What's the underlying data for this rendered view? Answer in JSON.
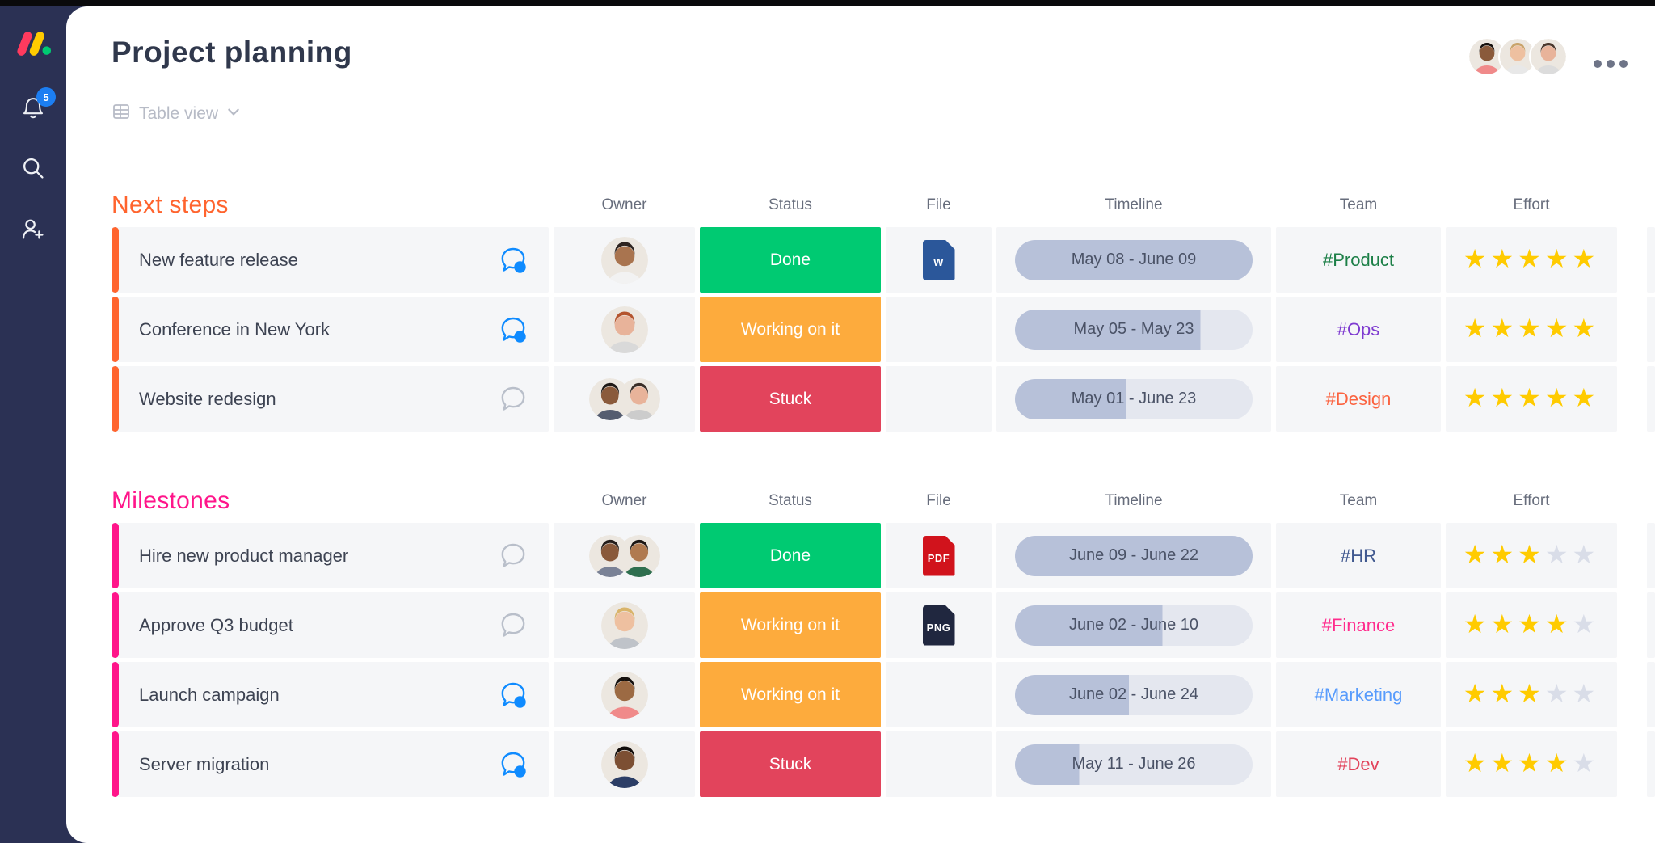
{
  "header": {
    "title": "Project planning",
    "view_label": "Table view"
  },
  "sidebar": {
    "notification_badge": "5",
    "icons": [
      "monday-logo",
      "notifications-bell",
      "search",
      "invite-user"
    ]
  },
  "topbar": {
    "avatars": [
      {
        "skin": "#8a5a3b",
        "hair": "#17110e",
        "shirt": "#f08a8a"
      },
      {
        "skin": "#eec0a0",
        "hair": "#c9a36a",
        "shirt": "#e8e8e8"
      },
      {
        "skin": "#e8b39a",
        "hair": "#4a372c",
        "shirt": "#dcdcdc"
      }
    ]
  },
  "columns": [
    "Owner",
    "Status",
    "File",
    "Timeline",
    "Team",
    "Effort"
  ],
  "palette": {
    "status_done": "#00ca72",
    "status_working": "#fdab3d",
    "status_stuck": "#e2445c",
    "star_filled": "#ffcb00",
    "star_empty": "#d9dde8",
    "timeline_fill": "#b7c1d9",
    "timeline_rest": "#e4e7ef",
    "update_blue": "#0f8bff",
    "bubble_gray": "#b9bfca"
  },
  "groups": [
    {
      "title": "Next steps",
      "color": "#ff642e",
      "rows": [
        {
          "name": "New feature release",
          "has_update": true,
          "owners": [
            {
              "skin": "#a9744f",
              "hair": "#2e2420",
              "shirt": "#f2f2f2"
            }
          ],
          "status": {
            "label": "Done",
            "color": "#00ca72"
          },
          "file": {
            "label": "W",
            "color": "#2b579a"
          },
          "timeline": {
            "label": "May 08 - June 09",
            "fill": 100
          },
          "team": {
            "label": "#Product",
            "color": "#1c7f47"
          },
          "effort": 5
        },
        {
          "name": "Conference in New York",
          "has_update": true,
          "owners": [
            {
              "skin": "#e8b39a",
              "hair": "#b4542e",
              "shirt": "#d9d9d9"
            }
          ],
          "status": {
            "label": "Working on it",
            "color": "#fdab3d"
          },
          "file": null,
          "timeline": {
            "label": "May 05 - May 23",
            "fill": 78
          },
          "team": {
            "label": "#Ops",
            "color": "#7e3bd0"
          },
          "effort": 5
        },
        {
          "name": "Website redesign",
          "has_update": false,
          "owners": [
            {
              "skin": "#8a5a3b",
              "hair": "#1f1a17",
              "shirt": "#555d70"
            },
            {
              "skin": "#e8b39a",
              "hair": "#3a2e28",
              "shirt": "#cccccc"
            }
          ],
          "status": {
            "label": "Stuck",
            "color": "#e2445c"
          },
          "file": null,
          "timeline": {
            "label": "May 01 - June 23",
            "fill": 47
          },
          "team": {
            "label": "#Design",
            "color": "#fb6340"
          },
          "effort": 5
        }
      ]
    },
    {
      "title": "Milestones",
      "color": "#ff158a",
      "rows": [
        {
          "name": "Hire new product manager",
          "has_update": false,
          "owners": [
            {
              "skin": "#8a5a3b",
              "hair": "#241d1a",
              "shirt": "#7a8296"
            },
            {
              "skin": "#b07a50",
              "hair": "#1c1613",
              "shirt": "#2f6f4f"
            }
          ],
          "status": {
            "label": "Done",
            "color": "#00ca72"
          },
          "file": {
            "label": "PDF",
            "color": "#d1131c"
          },
          "timeline": {
            "label": "June 09 - June 22",
            "fill": 100
          },
          "team": {
            "label": "#HR",
            "color": "#40588f"
          },
          "effort": 3
        },
        {
          "name": "Approve Q3 budget",
          "has_update": false,
          "owners": [
            {
              "skin": "#eec0a0",
              "hair": "#d9b46a",
              "shirt": "#bfc3c9"
            }
          ],
          "status": {
            "label": "Working on it",
            "color": "#fdab3d"
          },
          "file": {
            "label": "PNG",
            "color": "#20273f"
          },
          "timeline": {
            "label": "June 02 - June 10",
            "fill": 62
          },
          "team": {
            "label": "#Finance",
            "color": "#ff2c8d"
          },
          "effort": 4
        },
        {
          "name": "Launch campaign",
          "has_update": true,
          "owners": [
            {
              "skin": "#9c6a43",
              "hair": "#15100d",
              "shirt": "#f08a8a"
            }
          ],
          "status": {
            "label": "Working on it",
            "color": "#fdab3d"
          },
          "file": null,
          "timeline": {
            "label": "June 02 - June 24",
            "fill": 48
          },
          "team": {
            "label": "#Marketing",
            "color": "#579bfc"
          },
          "effort": 3
        },
        {
          "name": "Server migration",
          "has_update": true,
          "owners": [
            {
              "skin": "#7c4f33",
              "hair": "#120d0a",
              "shirt": "#2c3e66"
            }
          ],
          "status": {
            "label": "Stuck",
            "color": "#e2445c"
          },
          "file": null,
          "timeline": {
            "label": "May 11 - June 26",
            "fill": 27
          },
          "team": {
            "label": "#Dev",
            "color": "#e2445c"
          },
          "effort": 4
        }
      ]
    }
  ]
}
